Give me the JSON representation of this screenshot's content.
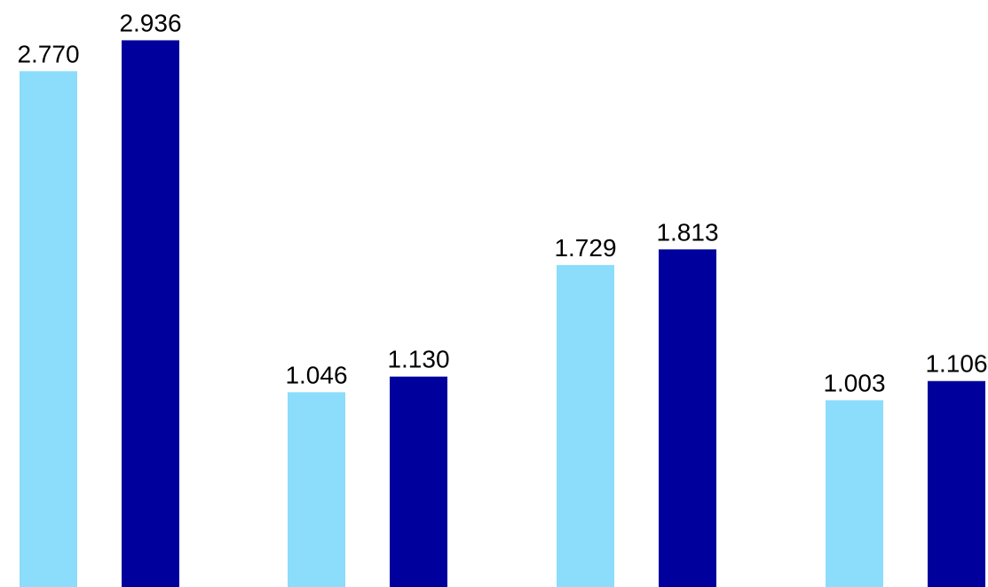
{
  "chart_data": {
    "type": "bar",
    "title": "",
    "xlabel": "",
    "ylabel": "",
    "categories": [
      "",
      "",
      "",
      ""
    ],
    "ylim": [
      0,
      3.05
    ],
    "grid": false,
    "legend": "none",
    "series": [
      {
        "color": "#8cdcfc",
        "values": [
          2.77,
          1.046,
          1.729,
          1.003
        ],
        "labels": [
          "2.770",
          "1.046",
          "1.729",
          "1.003"
        ]
      },
      {
        "color": "#00009c",
        "values": [
          2.936,
          1.13,
          1.813,
          1.106
        ],
        "labels": [
          "2.936",
          "1.130",
          "1.813",
          "1.106"
        ]
      }
    ]
  }
}
